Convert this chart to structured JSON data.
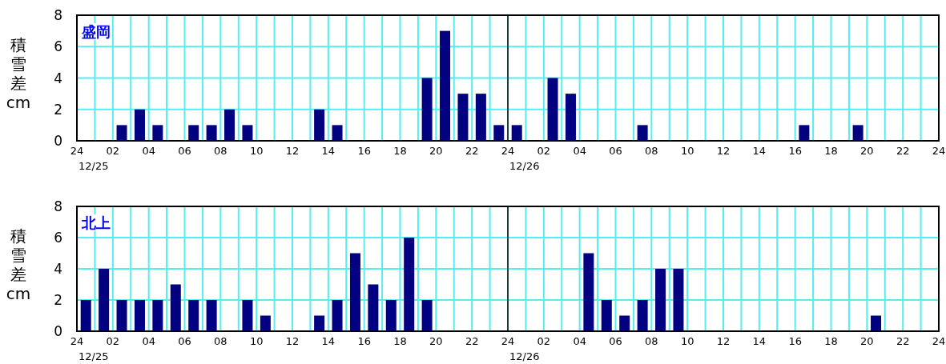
{
  "chart_data": [
    {
      "type": "bar",
      "title": "盛岡",
      "ylabel": "積雪差cm",
      "color": "#000080",
      "grid": true,
      "x": [
        "--12-25T02:30",
        "--12-25T03:30",
        "--12-25T04:30",
        "--12-25T06:30",
        "--12-25T07:30",
        "--12-25T08:30",
        "--12-25T09:30",
        "--12-25T13:30",
        "--12-25T14:30",
        "--12-25T19:30",
        "--12-25T20:30",
        "--12-25T21:30",
        "--12-25T22:30",
        "--12-25T23:30",
        "--12-26T00:30",
        "--12-26T02:30",
        "--12-26T03:30",
        "--12-26T07:30",
        "--12-26T16:30",
        "--12-26T19:30"
      ],
      "values": [
        1,
        2,
        1,
        1,
        1,
        2,
        1,
        2,
        1,
        4,
        7,
        3,
        3,
        1,
        1,
        4,
        3,
        1,
        1,
        1
      ],
      "xlim": [
        "--12-25T00:00",
        "--12-27T00:00"
      ],
      "ylim": [
        0,
        8
      ],
      "yticks": [
        0,
        2,
        4,
        6,
        8
      ],
      "xticks": [
        {
          "value": "--12-25T00:00",
          "label": "24"
        },
        {
          "value": "--12-25T01:00",
          "label": null
        },
        {
          "value": "--12-25T02:00",
          "label": "02"
        },
        {
          "value": "--12-25T03:00",
          "label": null
        },
        {
          "value": "--12-25T04:00",
          "label": "04"
        },
        {
          "value": "--12-25T05:00",
          "label": null
        },
        {
          "value": "--12-25T06:00",
          "label": "06"
        },
        {
          "value": "--12-25T07:00",
          "label": null
        },
        {
          "value": "--12-25T08:00",
          "label": "08"
        },
        {
          "value": "--12-25T09:00",
          "label": null
        },
        {
          "value": "--12-25T10:00",
          "label": "10"
        },
        {
          "value": "--12-25T11:00",
          "label": null
        },
        {
          "value": "--12-25T12:00",
          "label": "12"
        },
        {
          "value": "--12-25T13:00",
          "label": null
        },
        {
          "value": "--12-25T14:00",
          "label": "14"
        },
        {
          "value": "--12-25T15:00",
          "label": null
        },
        {
          "value": "--12-25T16:00",
          "label": "16"
        },
        {
          "value": "--12-25T17:00",
          "label": null
        },
        {
          "value": "--12-25T18:00",
          "label": "18"
        },
        {
          "value": "--12-25T19:00",
          "label": null
        },
        {
          "value": "--12-25T20:00",
          "label": "20"
        },
        {
          "value": "--12-25T21:00",
          "label": null
        },
        {
          "value": "--12-25T22:00",
          "label": "22"
        },
        {
          "value": "--12-25T23:00",
          "label": null
        },
        {
          "value": "--12-26T00:00",
          "label": "24"
        },
        {
          "value": "--12-26T01:00",
          "label": null
        },
        {
          "value": "--12-26T02:00",
          "label": "02"
        },
        {
          "value": "--12-26T03:00",
          "label": null
        },
        {
          "value": "--12-26T04:00",
          "label": "04"
        },
        {
          "value": "--12-26T05:00",
          "label": null
        },
        {
          "value": "--12-26T06:00",
          "label": "06"
        },
        {
          "value": "--12-26T07:00",
          "label": null
        },
        {
          "value": "--12-26T08:00",
          "label": "08"
        },
        {
          "value": "--12-26T09:00",
          "label": null
        },
        {
          "value": "--12-26T10:00",
          "label": "10"
        },
        {
          "value": "--12-26T11:00",
          "label": null
        },
        {
          "value": "--12-26T12:00",
          "label": "12"
        },
        {
          "value": "--12-26T13:00",
          "label": null
        },
        {
          "value": "--12-26T14:00",
          "label": "14"
        },
        {
          "value": "--12-26T15:00",
          "label": null
        },
        {
          "value": "--12-26T16:00",
          "label": "16"
        },
        {
          "value": "--12-26T17:00",
          "label": null
        },
        {
          "value": "--12-26T18:00",
          "label": "18"
        },
        {
          "value": "--12-26T19:00",
          "label": null
        },
        {
          "value": "--12-26T20:00",
          "label": "20"
        },
        {
          "value": "--12-26T21:00",
          "label": null
        },
        {
          "value": "--12-26T22:00",
          "label": "22"
        },
        {
          "value": "--12-26T23:00",
          "label": null
        },
        {
          "value": "--12-27T00:00",
          "label": "24"
        }
      ],
      "annotations": [
        "12/25",
        "12/26"
      ],
      "ref_lines": [
        {
          "axis": "x",
          "value": "--12-26T00:00",
          "color": "#000000"
        }
      ]
    },
    {
      "type": "bar",
      "title": "北上",
      "ylabel": "積雪差cm",
      "color": "#000080",
      "grid": true,
      "x": [
        "--12-25T00:30",
        "--12-25T01:30",
        "--12-25T02:30",
        "--12-25T03:30",
        "--12-25T04:30",
        "--12-25T05:30",
        "--12-25T06:30",
        "--12-25T07:30",
        "--12-25T09:30",
        "--12-25T10:30",
        "--12-25T13:30",
        "--12-25T14:30",
        "--12-25T15:30",
        "--12-25T16:30",
        "--12-25T17:30",
        "--12-25T18:30",
        "--12-25T19:30",
        "--12-26T04:30",
        "--12-26T05:30",
        "--12-26T06:30",
        "--12-26T07:30",
        "--12-26T08:30",
        "--12-26T09:30",
        "--12-26T20:30"
      ],
      "values": [
        2,
        4,
        2,
        2,
        2,
        3,
        2,
        2,
        2,
        1,
        1,
        2,
        5,
        3,
        2,
        6,
        2,
        5,
        2,
        1,
        2,
        4,
        4,
        1
      ],
      "xlim": [
        "--12-25T00:00",
        "--12-27T00:00"
      ],
      "ylim": [
        0,
        8
      ],
      "yticks": [
        0,
        2,
        4,
        6,
        8
      ],
      "xticks": [
        {
          "value": "--12-25T00:00",
          "label": "24"
        },
        {
          "value": "--12-25T01:00",
          "label": null
        },
        {
          "value": "--12-25T02:00",
          "label": "02"
        },
        {
          "value": "--12-25T03:00",
          "label": null
        },
        {
          "value": "--12-25T04:00",
          "label": "04"
        },
        {
          "value": "--12-25T05:00",
          "label": null
        },
        {
          "value": "--12-25T06:00",
          "label": "06"
        },
        {
          "value": "--12-25T07:00",
          "label": null
        },
        {
          "value": "--12-25T08:00",
          "label": "08"
        },
        {
          "value": "--12-25T09:00",
          "label": null
        },
        {
          "value": "--12-25T10:00",
          "label": "10"
        },
        {
          "value": "--12-25T11:00",
          "label": null
        },
        {
          "value": "--12-25T12:00",
          "label": "12"
        },
        {
          "value": "--12-25T13:00",
          "label": null
        },
        {
          "value": "--12-25T14:00",
          "label": "14"
        },
        {
          "value": "--12-25T15:00",
          "label": null
        },
        {
          "value": "--12-25T16:00",
          "label": "16"
        },
        {
          "value": "--12-25T17:00",
          "label": null
        },
        {
          "value": "--12-25T18:00",
          "label": "18"
        },
        {
          "value": "--12-25T19:00",
          "label": null
        },
        {
          "value": "--12-25T20:00",
          "label": "20"
        },
        {
          "value": "--12-25T21:00",
          "label": null
        },
        {
          "value": "--12-25T22:00",
          "label": "22"
        },
        {
          "value": "--12-25T23:00",
          "label": null
        },
        {
          "value": "--12-26T00:00",
          "label": "24"
        },
        {
          "value": "--12-26T01:00",
          "label": null
        },
        {
          "value": "--12-26T02:00",
          "label": "02"
        },
        {
          "value": "--12-26T03:00",
          "label": null
        },
        {
          "value": "--12-26T04:00",
          "label": "04"
        },
        {
          "value": "--12-26T05:00",
          "label": null
        },
        {
          "value": "--12-26T06:00",
          "label": "06"
        },
        {
          "value": "--12-26T07:00",
          "label": null
        },
        {
          "value": "--12-26T08:00",
          "label": "08"
        },
        {
          "value": "--12-26T09:00",
          "label": null
        },
        {
          "value": "--12-26T10:00",
          "label": "10"
        },
        {
          "value": "--12-26T11:00",
          "label": null
        },
        {
          "value": "--12-26T12:00",
          "label": "12"
        },
        {
          "value": "--12-26T13:00",
          "label": null
        },
        {
          "value": "--12-26T14:00",
          "label": "14"
        },
        {
          "value": "--12-26T15:00",
          "label": null
        },
        {
          "value": "--12-26T16:00",
          "label": "16"
        },
        {
          "value": "--12-26T17:00",
          "label": null
        },
        {
          "value": "--12-26T18:00",
          "label": "18"
        },
        {
          "value": "--12-26T19:00",
          "label": null
        },
        {
          "value": "--12-26T20:00",
          "label": "20"
        },
        {
          "value": "--12-26T21:00",
          "label": null
        },
        {
          "value": "--12-26T22:00",
          "label": "22"
        },
        {
          "value": "--12-26T23:00",
          "label": null
        },
        {
          "value": "--12-27T00:00",
          "label": "24"
        }
      ],
      "annotations": [
        "12/25",
        "12/26"
      ],
      "ref_lines": [
        {
          "axis": "x",
          "value": "--12-26T00:00",
          "color": "#000000"
        }
      ]
    }
  ]
}
